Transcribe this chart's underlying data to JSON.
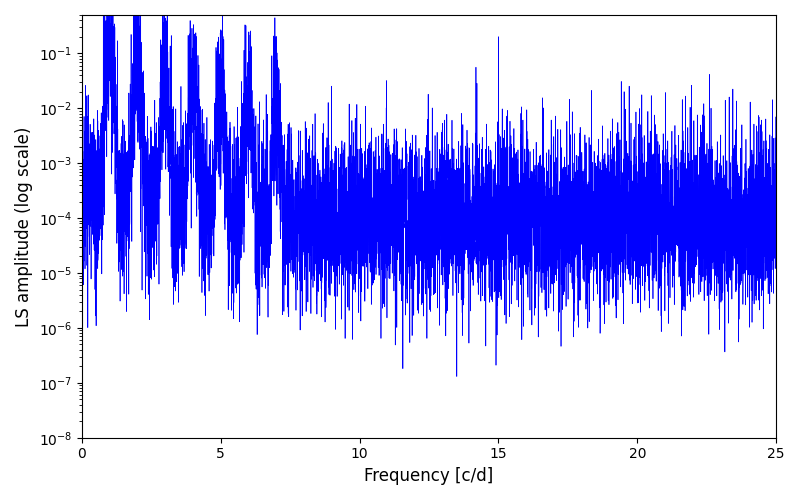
{
  "title": "",
  "xlabel": "Frequency [c/d]",
  "ylabel": "LS amplitude (log scale)",
  "xlim": [
    0,
    25
  ],
  "ylim": [
    1e-08,
    0.5
  ],
  "line_color": "blue",
  "background_color": "#ffffff",
  "figsize": [
    8.0,
    5.0
  ],
  "dpi": 100,
  "seed": 7777,
  "n_points": 8000,
  "freq_max": 25.0,
  "noise_floor": 0.0001,
  "peak_freq": 1.0,
  "num_harmonics": 7,
  "linewidth": 0.5
}
